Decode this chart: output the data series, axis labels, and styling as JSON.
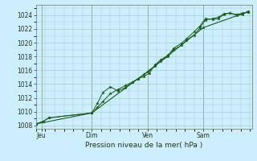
{
  "bg_color": "#cceeff",
  "grid_color": "#aacccc",
  "line_color": "#1a5c1a",
  "ylim": [
    1007.5,
    1025.5
  ],
  "yticks": [
    1008,
    1010,
    1012,
    1014,
    1016,
    1018,
    1020,
    1022,
    1024
  ],
  "xlim": [
    0,
    11.6
  ],
  "xtick_labels": [
    "Jeu",
    "Dim",
    "Ven",
    "Sam"
  ],
  "xtick_positions": [
    0.3,
    3.0,
    6.0,
    9.0
  ],
  "xlabel": "Pression niveau de la mer( hPa )",
  "series1_x": [
    0.0,
    0.4,
    0.7,
    3.0,
    3.3,
    3.6,
    4.0,
    4.4,
    4.8,
    5.2,
    5.5,
    5.8,
    6.1,
    6.4,
    6.7,
    7.1,
    7.4,
    7.8,
    8.1,
    8.5,
    8.8,
    9.1,
    9.5,
    9.8,
    10.1,
    10.4,
    10.8,
    11.1,
    11.4
  ],
  "series1_y": [
    1008.2,
    1008.6,
    1009.1,
    1009.8,
    1010.6,
    1011.5,
    1012.6,
    1013.2,
    1013.8,
    1014.3,
    1014.8,
    1015.4,
    1016.0,
    1016.6,
    1017.3,
    1018.0,
    1019.0,
    1019.6,
    1020.4,
    1021.1,
    1022.1,
    1023.3,
    1023.5,
    1023.7,
    1024.2,
    1024.3,
    1024.1,
    1024.3,
    1024.4
  ],
  "series2_x": [
    0.0,
    0.4,
    0.7,
    3.0,
    3.3,
    3.6,
    4.0,
    4.4,
    4.8,
    5.2,
    5.5,
    5.8,
    6.1,
    6.4,
    6.7,
    7.1,
    7.4,
    7.8,
    8.1,
    8.5,
    8.8,
    9.1,
    9.5,
    9.8,
    10.1,
    10.4,
    10.8,
    11.1,
    11.4
  ],
  "series2_y": [
    1008.2,
    1008.6,
    1009.1,
    1009.8,
    1011.2,
    1012.8,
    1013.6,
    1013.0,
    1013.5,
    1014.3,
    1014.8,
    1015.1,
    1015.6,
    1016.8,
    1017.5,
    1018.2,
    1019.2,
    1019.9,
    1020.6,
    1021.6,
    1022.4,
    1023.5,
    1023.4,
    1023.5,
    1024.1,
    1024.3,
    1024.0,
    1024.1,
    1024.6
  ],
  "series3_x": [
    0.0,
    3.0,
    6.0,
    9.0,
    11.4
  ],
  "series3_y": [
    1008.2,
    1009.8,
    1015.8,
    1022.2,
    1024.5
  ]
}
